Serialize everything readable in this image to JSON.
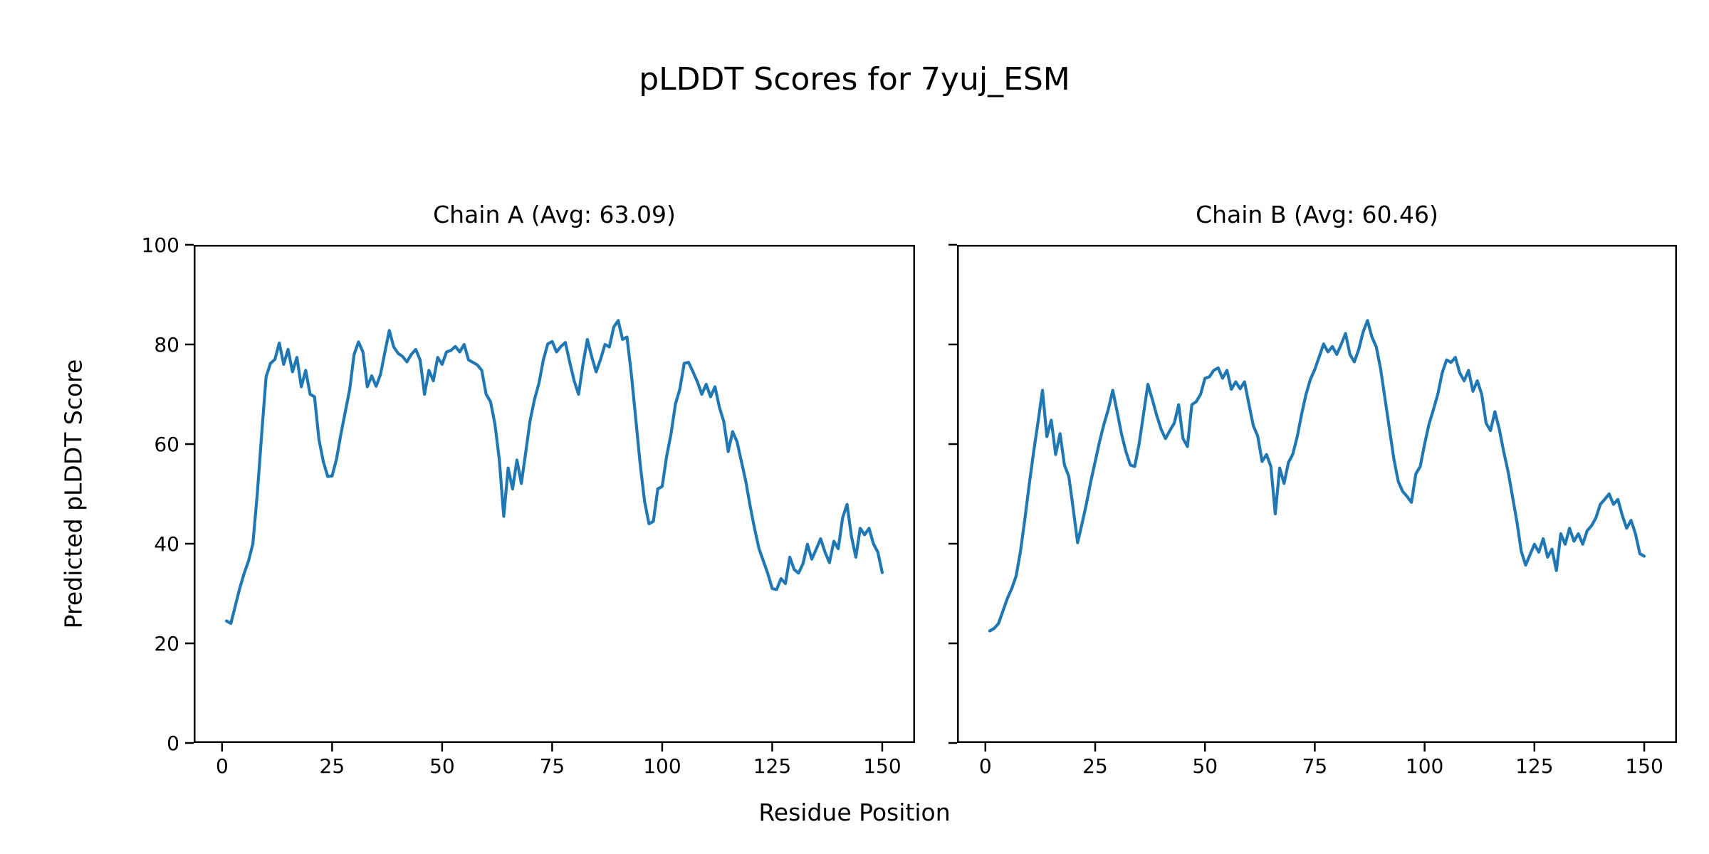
{
  "figure": {
    "title": "pLDDT Scores for 7yuj_ESM",
    "xlabel": "Residue Position",
    "ylabel": "Predicted pLDDT Score",
    "background_color": "#ffffff",
    "text_color": "#000000",
    "axis_color": "#000000"
  },
  "chart_data": [
    {
      "type": "line",
      "title": "Chain A (Avg: 63.09)",
      "chain": "A",
      "average": 63.09,
      "line_color": "#1f77b4",
      "xlim": [
        -6.45,
        157.45
      ],
      "ylim": [
        0,
        100
      ],
      "xticks": [
        0,
        25,
        50,
        75,
        100,
        125,
        150
      ],
      "yticks": [
        0,
        20,
        40,
        60,
        80,
        100
      ],
      "show_y_tick_labels": true,
      "grid": false,
      "x_range": [
        1,
        150
      ],
      "values": [
        24.5,
        24.0,
        27.5,
        31.0,
        34.0,
        36.5,
        40.0,
        50.0,
        62.0,
        73.5,
        76.2,
        77.0,
        80.3,
        76.0,
        79.0,
        74.5,
        77.4,
        71.5,
        74.8,
        70.0,
        69.5,
        61.0,
        56.5,
        53.5,
        53.6,
        57.0,
        62.0,
        66.5,
        71.0,
        78.0,
        80.5,
        78.5,
        71.5,
        73.7,
        71.6,
        74.0,
        78.5,
        82.8,
        79.5,
        78.2,
        77.6,
        76.5,
        78.0,
        79.0,
        76.9,
        70.0,
        74.8,
        72.7,
        77.4,
        76.0,
        78.5,
        78.8,
        79.6,
        78.5,
        80.0,
        76.9,
        76.4,
        75.9,
        74.8,
        70.0,
        68.5,
        64.0,
        56.8,
        45.5,
        55.2,
        51.0,
        56.8,
        52.1,
        58.4,
        64.8,
        69.0,
        72.2,
        76.9,
        80.1,
        80.6,
        78.5,
        79.6,
        80.4,
        76.4,
        72.7,
        70.0,
        76.0,
        81.0,
        77.5,
        74.5,
        77.0,
        80.0,
        79.5,
        83.5,
        84.8,
        81.0,
        81.5,
        74.0,
        65.0,
        56.0,
        48.5,
        44.0,
        44.5,
        51.0,
        51.5,
        57.5,
        62.0,
        68.0,
        71.0,
        76.2,
        76.4,
        74.5,
        72.5,
        70.0,
        72.0,
        69.5,
        71.5,
        67.4,
        64.5,
        58.5,
        62.5,
        60.5,
        56.5,
        52.5,
        47.5,
        43.0,
        39.0,
        36.5,
        34.0,
        31.0,
        30.8,
        33.0,
        32.0,
        37.3,
        34.8,
        34.1,
        36.0,
        39.9,
        36.9,
        38.9,
        41.0,
        38.3,
        36.2,
        40.5,
        39.0,
        45.2,
        47.9,
        41.5,
        37.3,
        43.1,
        41.8,
        43.1,
        40.0,
        38.3,
        34.2
      ]
    },
    {
      "type": "line",
      "title": "Chain B (Avg: 60.46)",
      "chain": "B",
      "average": 60.46,
      "line_color": "#1f77b4",
      "xlim": [
        -6.45,
        157.45
      ],
      "ylim": [
        0,
        100
      ],
      "xticks": [
        0,
        25,
        50,
        75,
        100,
        125,
        150
      ],
      "yticks": [
        0,
        20,
        40,
        60,
        80,
        100
      ],
      "show_y_tick_labels": false,
      "grid": false,
      "x_range": [
        1,
        150
      ],
      "values": [
        22.5,
        23.0,
        24.0,
        26.5,
        29.0,
        31.0,
        33.5,
        38.5,
        45.0,
        52.0,
        58.5,
        64.5,
        70.8,
        61.5,
        64.8,
        57.9,
        62.1,
        55.8,
        53.5,
        47.0,
        40.2,
        44.0,
        48.0,
        52.5,
        56.5,
        60.5,
        64.0,
        67.0,
        70.8,
        66.5,
        62.0,
        58.5,
        55.8,
        55.5,
        60.0,
        66.0,
        72.0,
        69.0,
        65.8,
        63.0,
        61.1,
        62.7,
        64.2,
        67.9,
        61.1,
        59.5,
        67.9,
        68.5,
        70.0,
        73.2,
        73.5,
        74.8,
        75.3,
        73.2,
        74.8,
        71.0,
        72.5,
        71.1,
        72.5,
        68.0,
        63.7,
        61.6,
        56.5,
        57.9,
        55.5,
        46.0,
        55.2,
        52.1,
        56.3,
        58.0,
        61.5,
        66.0,
        70.0,
        73.0,
        75.0,
        77.5,
        80.1,
        78.5,
        79.6,
        78.0,
        80.0,
        82.2,
        78.0,
        76.5,
        79.0,
        82.5,
        84.8,
        81.5,
        79.5,
        75.0,
        69.0,
        63.0,
        57.0,
        52.5,
        50.5,
        49.5,
        48.3,
        54.0,
        55.5,
        60.0,
        64.0,
        66.9,
        70.0,
        74.3,
        76.9,
        76.4,
        77.4,
        74.3,
        72.7,
        74.8,
        70.6,
        72.7,
        70.0,
        64.2,
        62.7,
        66.5,
        63.0,
        58.5,
        54.5,
        49.5,
        44.5,
        38.5,
        35.7,
        37.8,
        39.9,
        38.3,
        41.0,
        37.3,
        38.9,
        34.6,
        42.0,
        39.9,
        43.1,
        40.5,
        42.0,
        39.9,
        42.6,
        43.6,
        45.2,
        47.9,
        48.9,
        50.0,
        47.9,
        48.9,
        45.7,
        43.1,
        44.7,
        42.0,
        38.0,
        37.5
      ]
    }
  ],
  "style": {
    "spine_width": 2.5,
    "tick_length": 12,
    "tick_width": 2.5,
    "line_width": 4.2,
    "tick_font_size": 28
  }
}
